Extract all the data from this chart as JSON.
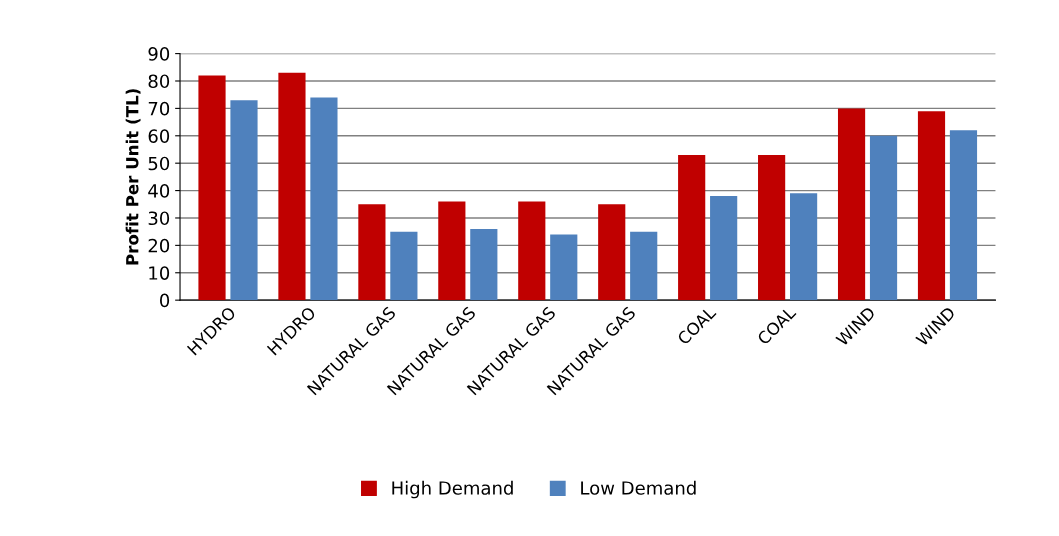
{
  "chart_data": {
    "type": "bar",
    "ylabel": "Profit Per Unit (TL)",
    "categories": [
      "HYDRO",
      "HYDRO",
      "NATURAL GAS",
      "NATURAL GAS",
      "NATURAL GAS",
      "NATURAL GAS",
      "COAL",
      "COAL",
      "WIND",
      "WIND"
    ],
    "series": [
      {
        "name": "High Demand",
        "color": "#c00000",
        "values": [
          82,
          83,
          35,
          36,
          36,
          35,
          53,
          53,
          70,
          69
        ]
      },
      {
        "name": "Low Demand",
        "color": "#4f81bd",
        "values": [
          73,
          74,
          25,
          26,
          24,
          25,
          38,
          39,
          60,
          62
        ]
      }
    ],
    "ylim": [
      0,
      90
    ],
    "yticks": [
      0,
      10,
      20,
      30,
      40,
      50,
      60,
      70,
      80,
      90
    ],
    "grid": "y",
    "legend": "bottom"
  }
}
